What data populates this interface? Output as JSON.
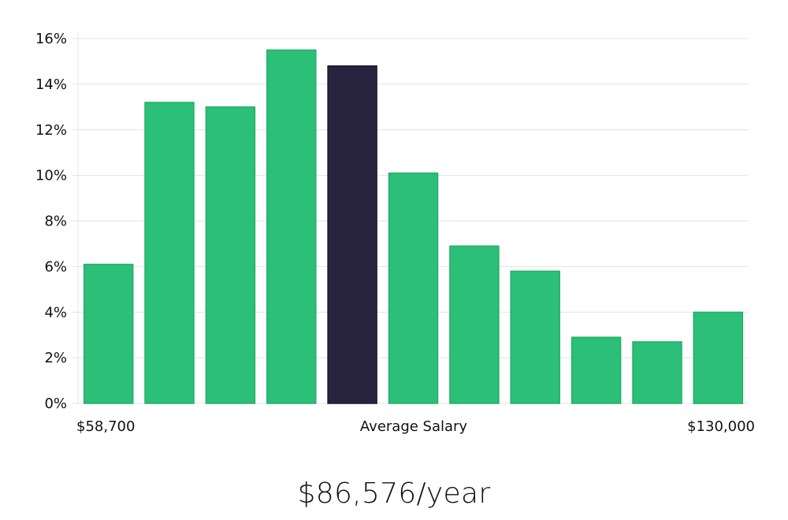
{
  "chart_data": {
    "type": "bar",
    "title": "",
    "xlabel": "Average Salary",
    "ylabel": "",
    "ylim": [
      0,
      16
    ],
    "yticks": [
      "0%",
      "2%",
      "4%",
      "6%",
      "8%",
      "10%",
      "12%",
      "14%",
      "16%"
    ],
    "ytick_values": [
      0,
      2,
      4,
      6,
      8,
      10,
      12,
      14,
      16
    ],
    "x_range_labels": {
      "min": "$58,700",
      "max": "$130,000"
    },
    "values": [
      6.1,
      13.2,
      13.0,
      15.5,
      14.8,
      10.1,
      6.9,
      5.8,
      2.9,
      2.7,
      4.0
    ],
    "highlight_index": 4,
    "grid": true,
    "colors": {
      "bar": "#2bbf77",
      "bar_edge": "#22b06b",
      "highlight": "#28243f",
      "grid": "#e3e3e3"
    }
  },
  "headline": {
    "salary": "$86,576/year"
  }
}
